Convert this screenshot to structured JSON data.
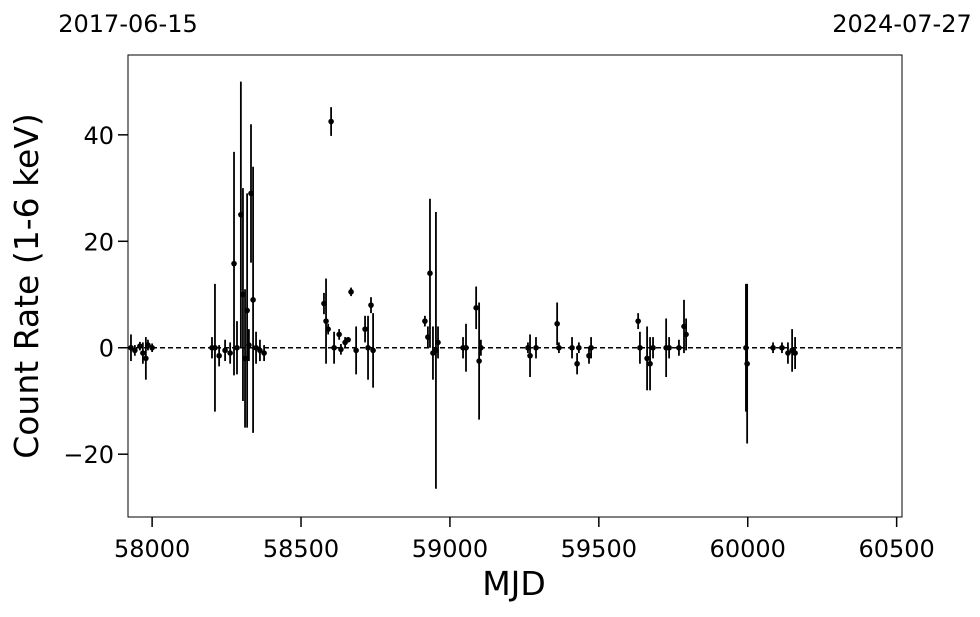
{
  "chart_data": {
    "type": "errorbar",
    "x_label": "MJD",
    "y_label": "Count Rate (1-6 keV)",
    "xlim": [
      57919,
      60518
    ],
    "ylim": [
      -31.8,
      55
    ],
    "xticks": [
      58000,
      58500,
      59000,
      59500,
      60000,
      60500
    ],
    "yticks": [
      {
        "value": -20,
        "label": "−20"
      },
      0,
      20,
      40
    ],
    "x2ticks": [
      {
        "value": 57919,
        "label": "2017-06-15"
      },
      {
        "value": 60518,
        "label": "2024-07-27"
      }
    ],
    "hline": 0,
    "color": "#000000",
    "x": [
      57929,
      57942,
      57959,
      57969,
      57979,
      57986,
      58000,
      58201,
      58211,
      58225,
      58245,
      58262,
      58275,
      58285,
      58298,
      58305,
      58312,
      58319,
      58325,
      58332,
      58339,
      58349,
      58362,
      58376,
      58577,
      58584,
      58591,
      58601,
      58611,
      58628,
      58634,
      58648,
      58658,
      58668,
      58685,
      58715,
      58725,
      58735,
      58742,
      58916,
      58926,
      58933,
      58943,
      58953,
      58960,
      59044,
      59054,
      59088,
      59098,
      59104,
      59262,
      59269,
      59289,
      59360,
      59366,
      59410,
      59427,
      59433,
      59467,
      59474,
      59632,
      59638,
      59662,
      59672,
      59682,
      59726,
      59736,
      59769,
      59786,
      59793,
      59994,
      59998,
      60085,
      60115,
      60135,
      60149,
      60159
    ],
    "values": [
      0,
      -0.5,
      0.3,
      -1,
      -2,
      0.5,
      0,
      0,
      0,
      -1.5,
      -0.5,
      -1,
      15.8,
      0,
      25,
      10,
      -2,
      7,
      0.5,
      29,
      9,
      0,
      -0.5,
      -1,
      8.3,
      5,
      3.5,
      42.5,
      0,
      2.5,
      -0.3,
      1,
      1.5,
      10.5,
      -0.5,
      3.5,
      0,
      8,
      -0.5,
      5,
      2,
      14,
      -1,
      -0.5,
      1,
      0,
      0,
      7.5,
      -2.5,
      0,
      0,
      -1.5,
      0,
      4.5,
      0,
      0,
      -3,
      0,
      -1.5,
      0,
      5,
      0,
      -2,
      -3,
      0,
      0,
      0,
      0,
      4,
      2.5,
      0,
      -3,
      0,
      0,
      -1,
      -0.5,
      -1
    ],
    "yerr": [
      2.5,
      1,
      0.8,
      2,
      4,
      1,
      0.8,
      2,
      12,
      2,
      2,
      2,
      21,
      5,
      25,
      20,
      13,
      22,
      3,
      13,
      25,
      3,
      2,
      1.5,
      2,
      8,
      1,
      2.7,
      3,
      1,
      1,
      1,
      0.5,
      0.8,
      4.5,
      2.5,
      6,
      1.5,
      7,
      1,
      2,
      14,
      5,
      26,
      3,
      2,
      4.5,
      4,
      11,
      1.5,
      1,
      4,
      2,
      4,
      1,
      2,
      2,
      1,
      1.5,
      2,
      1.5,
      3,
      6,
      5,
      2,
      5.5,
      2,
      1.5,
      5,
      3,
      12,
      15,
      1,
      1,
      2,
      4,
      3
    ]
  }
}
